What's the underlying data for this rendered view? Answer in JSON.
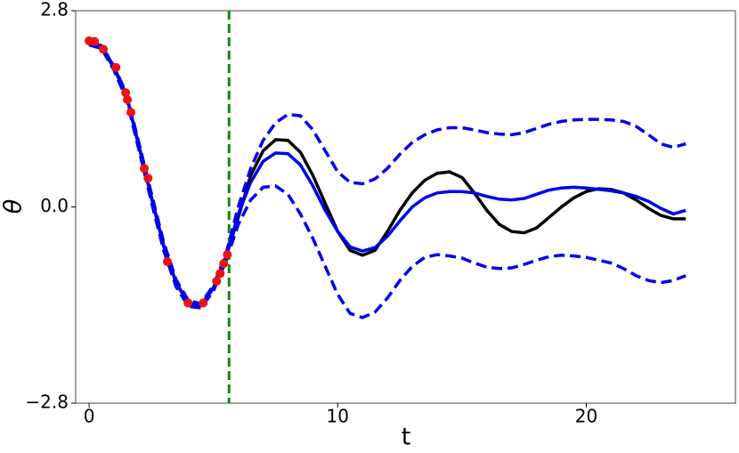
{
  "chart_data": {
    "type": "line",
    "xlabel": "t",
    "ylabel": "θ",
    "xlim": [
      -0.54,
      26.0
    ],
    "ylim": [
      -2.8,
      2.8
    ],
    "xticks": [
      0,
      10,
      20
    ],
    "yticks": [
      {
        "value": -2.8,
        "label": "−2.8"
      },
      {
        "value": 0,
        "label": "0.0"
      },
      2.8
    ],
    "x": [
      0,
      0.5,
      1,
      1.5,
      2,
      2.5,
      3,
      3.5,
      4,
      4.5,
      5,
      5.5,
      6,
      6.5,
      7,
      7.5,
      8,
      8.5,
      9,
      9.5,
      10,
      10.5,
      11,
      11.5,
      12,
      12.5,
      13,
      13.5,
      14,
      14.5,
      15,
      15.5,
      16,
      16.5,
      17,
      17.5,
      18,
      18.5,
      19,
      19.5,
      20,
      20.5,
      21,
      21.5,
      22,
      22.5,
      23,
      23.5,
      24
    ],
    "series": [
      {
        "color": "#000000",
        "dashed": false,
        "values": [
          2.35,
          2.3,
          2.0,
          1.6,
          0.88,
          0.15,
          -0.55,
          -1.08,
          -1.37,
          -1.4,
          -1.15,
          -0.72,
          -0.15,
          0.45,
          0.8,
          0.96,
          0.95,
          0.78,
          0.45,
          0.05,
          -0.35,
          -0.62,
          -0.69,
          -0.62,
          -0.35,
          -0.05,
          0.2,
          0.38,
          0.48,
          0.5,
          0.42,
          0.2,
          -0.05,
          -0.25,
          -0.35,
          -0.37,
          -0.3,
          -0.15,
          0.0,
          0.13,
          0.22,
          0.26,
          0.25,
          0.2,
          0.1,
          -0.02,
          -0.12,
          -0.17,
          -0.17
        ]
      },
      {
        "color": "#0000ee",
        "dashed": false,
        "values": [
          2.32,
          2.28,
          1.98,
          1.58,
          0.87,
          0.14,
          -0.56,
          -1.09,
          -1.38,
          -1.41,
          -1.16,
          -0.73,
          -0.1,
          0.35,
          0.65,
          0.77,
          0.76,
          0.6,
          0.3,
          -0.05,
          -0.35,
          -0.57,
          -0.63,
          -0.58,
          -0.42,
          -0.2,
          0.0,
          0.13,
          0.2,
          0.22,
          0.22,
          0.2,
          0.15,
          0.11,
          0.1,
          0.12,
          0.18,
          0.24,
          0.27,
          0.28,
          0.27,
          0.25,
          0.23,
          0.2,
          0.15,
          0.08,
          -0.02,
          -0.1,
          -0.05
        ]
      },
      {
        "color": "#0000ee",
        "dashed": true,
        "values": [
          2.33,
          2.3,
          2.01,
          1.62,
          0.92,
          0.2,
          -0.5,
          -1.04,
          -1.34,
          -1.38,
          -1.12,
          -0.68,
          0.0,
          0.55,
          0.95,
          1.2,
          1.32,
          1.3,
          1.1,
          0.8,
          0.5,
          0.35,
          0.33,
          0.4,
          0.55,
          0.75,
          0.92,
          1.03,
          1.1,
          1.13,
          1.13,
          1.1,
          1.06,
          1.04,
          1.03,
          1.06,
          1.12,
          1.18,
          1.22,
          1.24,
          1.25,
          1.25,
          1.24,
          1.22,
          1.15,
          1.03,
          0.9,
          0.85,
          0.9
        ]
      },
      {
        "color": "#0000ee",
        "dashed": true,
        "values": [
          2.31,
          2.26,
          1.95,
          1.54,
          0.82,
          0.08,
          -0.62,
          -1.14,
          -1.42,
          -1.44,
          -1.2,
          -0.78,
          -0.25,
          0.1,
          0.28,
          0.3,
          0.18,
          -0.1,
          -0.45,
          -0.85,
          -1.25,
          -1.52,
          -1.58,
          -1.5,
          -1.3,
          -1.05,
          -0.85,
          -0.72,
          -0.68,
          -0.7,
          -0.73,
          -0.8,
          -0.86,
          -0.88,
          -0.87,
          -0.82,
          -0.76,
          -0.71,
          -0.69,
          -0.7,
          -0.72,
          -0.76,
          -0.8,
          -0.88,
          -0.98,
          -1.05,
          -1.08,
          -1.05,
          -0.98
        ]
      }
    ],
    "points": {
      "color": "#ee1111",
      "x": [
        0,
        0.22,
        0.57,
        1.08,
        1.47,
        1.54,
        1.68,
        2.22,
        2.37,
        3.15,
        3.98,
        4.59,
        5.13,
        5.27,
        5.41,
        5.56
      ],
      "y": [
        2.37,
        2.36,
        2.25,
        1.99,
        1.63,
        1.53,
        1.35,
        0.55,
        0.41,
        -0.78,
        -1.37,
        -1.37,
        -1.06,
        -0.95,
        -0.81,
        -0.68
      ]
    },
    "vline": {
      "x": 5.63,
      "color": "#118811"
    }
  }
}
